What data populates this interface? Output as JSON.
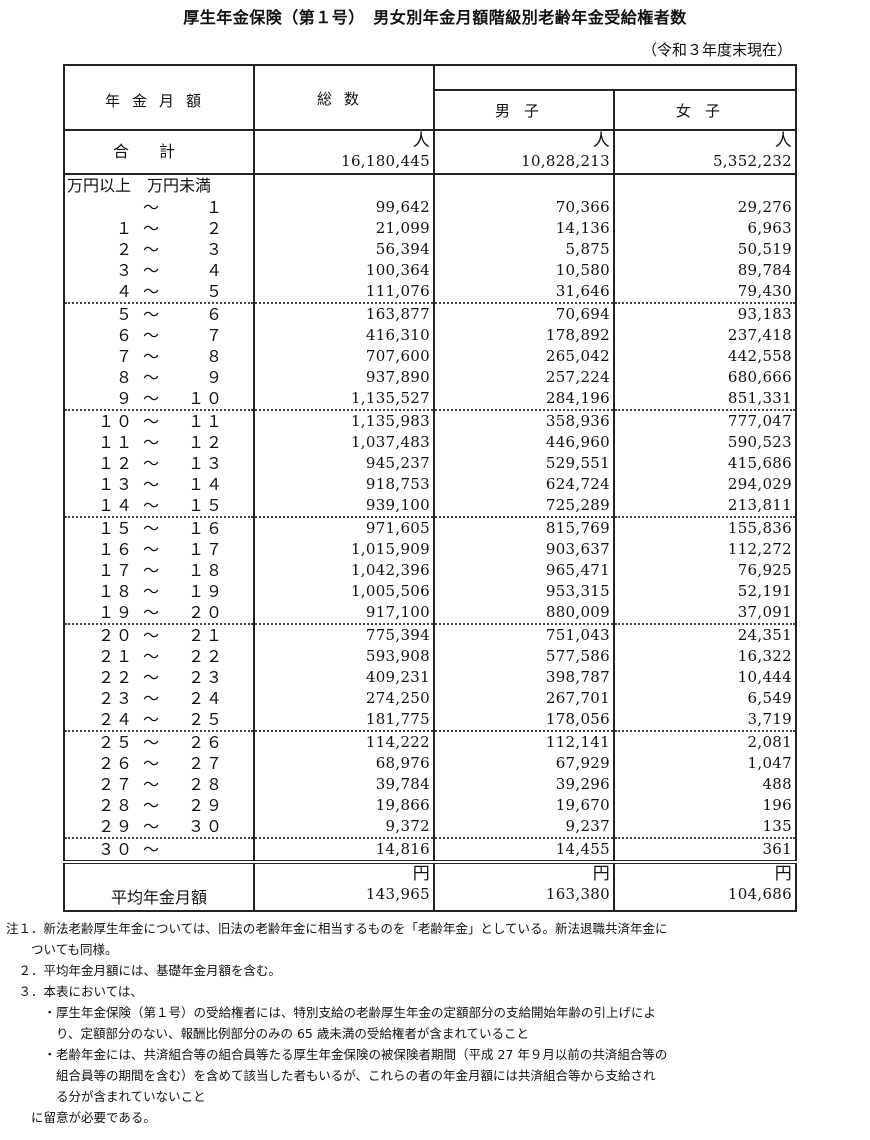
{
  "title": "厚生年金保険（第１号）　男女別年金月額階級別老齢年金受給権者数",
  "as_of": "（令和３年度末現在）",
  "headers": {
    "amount": "年金月額",
    "total": "総数",
    "male": "男子",
    "female": "女子"
  },
  "total_row": {
    "label": "合計",
    "unit": "人",
    "total": "16,180,445",
    "male": "10,828,213",
    "female": "5,352,232"
  },
  "range_units": "万円以上　万円未満",
  "tilde": "～",
  "rows": [
    {
      "from": "",
      "to": "1",
      "total": "99,642",
      "male": "70,366",
      "female": "29,276"
    },
    {
      "from": "1",
      "to": "2",
      "total": "21,099",
      "male": "14,136",
      "female": "6,963"
    },
    {
      "from": "2",
      "to": "3",
      "total": "56,394",
      "male": "5,875",
      "female": "50,519"
    },
    {
      "from": "3",
      "to": "4",
      "total": "100,364",
      "male": "10,580",
      "female": "89,784"
    },
    {
      "from": "4",
      "to": "5",
      "total": "111,076",
      "male": "31,646",
      "female": "79,430"
    },
    {
      "from": "5",
      "to": "6",
      "total": "163,877",
      "male": "70,694",
      "female": "93,183"
    },
    {
      "from": "6",
      "to": "7",
      "total": "416,310",
      "male": "178,892",
      "female": "237,418"
    },
    {
      "from": "7",
      "to": "8",
      "total": "707,600",
      "male": "265,042",
      "female": "442,558"
    },
    {
      "from": "8",
      "to": "9",
      "total": "937,890",
      "male": "257,224",
      "female": "680,666"
    },
    {
      "from": "9",
      "to": "10",
      "total": "1,135,527",
      "male": "284,196",
      "female": "851,331"
    },
    {
      "from": "10",
      "to": "11",
      "total": "1,135,983",
      "male": "358,936",
      "female": "777,047"
    },
    {
      "from": "11",
      "to": "12",
      "total": "1,037,483",
      "male": "446,960",
      "female": "590,523"
    },
    {
      "from": "12",
      "to": "13",
      "total": "945,237",
      "male": "529,551",
      "female": "415,686"
    },
    {
      "from": "13",
      "to": "14",
      "total": "918,753",
      "male": "624,724",
      "female": "294,029"
    },
    {
      "from": "14",
      "to": "15",
      "total": "939,100",
      "male": "725,289",
      "female": "213,811"
    },
    {
      "from": "15",
      "to": "16",
      "total": "971,605",
      "male": "815,769",
      "female": "155,836"
    },
    {
      "from": "16",
      "to": "17",
      "total": "1,015,909",
      "male": "903,637",
      "female": "112,272"
    },
    {
      "from": "17",
      "to": "18",
      "total": "1,042,396",
      "male": "965,471",
      "female": "76,925"
    },
    {
      "from": "18",
      "to": "19",
      "total": "1,005,506",
      "male": "953,315",
      "female": "52,191"
    },
    {
      "from": "19",
      "to": "20",
      "total": "917,100",
      "male": "880,009",
      "female": "37,091"
    },
    {
      "from": "20",
      "to": "21",
      "total": "775,394",
      "male": "751,043",
      "female": "24,351"
    },
    {
      "from": "21",
      "to": "22",
      "total": "593,908",
      "male": "577,586",
      "female": "16,322"
    },
    {
      "from": "22",
      "to": "23",
      "total": "409,231",
      "male": "398,787",
      "female": "10,444"
    },
    {
      "from": "23",
      "to": "24",
      "total": "274,250",
      "male": "267,701",
      "female": "6,549"
    },
    {
      "from": "24",
      "to": "25",
      "total": "181,775",
      "male": "178,056",
      "female": "3,719"
    },
    {
      "from": "25",
      "to": "26",
      "total": "114,222",
      "male": "112,141",
      "female": "2,081"
    },
    {
      "from": "26",
      "to": "27",
      "total": "68,976",
      "male": "67,929",
      "female": "1,047"
    },
    {
      "from": "27",
      "to": "28",
      "total": "39,784",
      "male": "39,296",
      "female": "488"
    },
    {
      "from": "28",
      "to": "29",
      "total": "19,866",
      "male": "19,670",
      "female": "196"
    },
    {
      "from": "29",
      "to": "30",
      "total": "9,372",
      "male": "9,237",
      "female": "135"
    },
    {
      "from": "30",
      "to": "",
      "total": "14,816",
      "male": "14,455",
      "female": "361"
    }
  ],
  "average_row": {
    "label": "平均年金月額",
    "unit": "円",
    "total": "143,965",
    "male": "163,380",
    "female": "104,686"
  },
  "notes": [
    "注１．新法老齢厚生年金については、旧法の老齢年金に相当するものを「老齢年金」としている。新法退職共済年金に",
    "　　ついても同様。",
    "　２．平均年金月額には、基礎年金月額を含む。",
    "　３．本表においては、",
    "　　　・厚生年金保険（第１号）の受給権者には、特別支給の老齢厚生年金の定額部分の支給開始年齢の引上げによ",
    "　　　　り、定額部分のない、報酬比例部分のみの 65 歳未満の受給権者が含まれていること",
    "　　　・老齢年金には、共済組合等の組合員等たる厚生年金保険の被保険者期間（平成 27 年９月以前の共済組合等の",
    "　　　　組合員等の期間を含む）を含めて該当した者もいるが、これらの者の年金月額には共済組合等から支給され",
    "　　　　る分が含まれていないこと",
    "　　に留意が必要である。"
  ]
}
